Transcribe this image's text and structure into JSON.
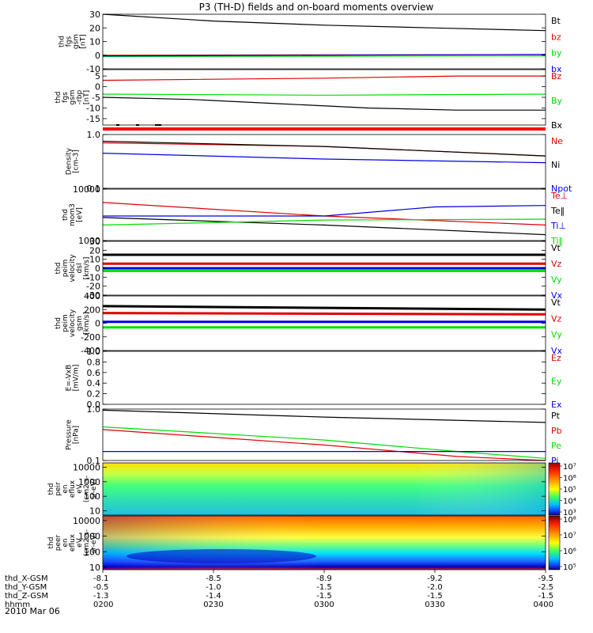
{
  "title": "P3 (TH-D) fields and on-board moments overview",
  "date_label": "2010 Mar 06",
  "colors": {
    "black": "#000000",
    "red": "#e00000",
    "green": "#00dd00",
    "blue": "#0000e0",
    "flag": "#ff0000"
  },
  "chart_data": [
    {
      "type": "line",
      "panel": "fgs-gsm",
      "ylabel": [
        "thd",
        "fgs",
        "gsm",
        "[nT]"
      ],
      "ylim": [
        -10,
        30
      ],
      "yscale": "linear",
      "ticks": [
        "30",
        "20",
        "10",
        "0",
        "-10"
      ],
      "ticks_values": [
        30,
        20,
        10,
        0,
        -10
      ],
      "series": [
        {
          "name": "Bt",
          "color": "black",
          "x": [
            0,
            0.25,
            0.5,
            0.75,
            1
          ],
          "values": [
            30,
            25,
            22,
            20,
            18
          ]
        },
        {
          "name": "bz",
          "color": "red",
          "x": [
            0,
            1
          ],
          "values": [
            0,
            0.5
          ]
        },
        {
          "name": "by",
          "color": "green",
          "x": [
            0,
            1
          ],
          "values": [
            -1,
            -0.5
          ]
        },
        {
          "name": "bx",
          "color": "blue",
          "x": [
            0,
            1
          ],
          "values": [
            -0.5,
            0.5
          ]
        }
      ]
    },
    {
      "type": "line",
      "panel": "fgs-gsm-rbp",
      "ylabel": [
        "thd",
        "fgs",
        "gsm",
        "-rbp",
        "[nT]"
      ],
      "ylim": [
        -18,
        8
      ],
      "yscale": "linear",
      "ticks": [
        "5",
        "0",
        "-5",
        "-10",
        "-15"
      ],
      "ticks_values": [
        5,
        0,
        -5,
        -10,
        -15
      ],
      "series": [
        {
          "name": "Bz",
          "color": "red",
          "x": [
            0,
            0.5,
            0.8,
            1
          ],
          "values": [
            3,
            4,
            5,
            5
          ]
        },
        {
          "name": "By",
          "color": "green",
          "x": [
            0,
            0.5,
            1
          ],
          "values": [
            -3.5,
            -4,
            -3.5
          ]
        },
        {
          "name": "Bx",
          "color": "black",
          "x": [
            0,
            0.2,
            0.4,
            0.6,
            0.8,
            1
          ],
          "values": [
            -5,
            -6,
            -8,
            -10,
            -11,
            -11
          ]
        }
      ]
    },
    {
      "type": "line",
      "panel": "density",
      "ylabel": [
        "Density",
        "[cm-3]"
      ],
      "ylim": [
        0.1,
        1.0
      ],
      "yscale": "log",
      "ticks": [
        "1.0",
        "0.1"
      ],
      "ticks_values": [
        1.0,
        0.1
      ],
      "series": [
        {
          "name": "Ne",
          "color": "red",
          "x": [
            0,
            0.5,
            1
          ],
          "values": [
            0.7,
            0.6,
            0.4
          ]
        },
        {
          "name": "Ni",
          "color": "black",
          "x": [
            0,
            0.5,
            1
          ],
          "values": [
            0.75,
            0.6,
            0.4
          ]
        },
        {
          "name": "Npot",
          "color": "blue",
          "x": [
            0,
            0.5,
            1
          ],
          "values": [
            0.45,
            0.35,
            0.3
          ]
        }
      ]
    },
    {
      "type": "line",
      "panel": "temperature",
      "ylabel": [
        "thd",
        "mom3",
        "[eV]"
      ],
      "ylim": [
        1000,
        10000
      ],
      "yscale": "log",
      "ticks": [
        "10000",
        "1000"
      ],
      "ticks_values": [
        10000,
        1000
      ],
      "series": [
        {
          "name": "Te⊥",
          "color": "red",
          "x": [
            0,
            0.5,
            1
          ],
          "values": [
            5500,
            3000,
            2000
          ]
        },
        {
          "name": "Te‖",
          "color": "black",
          "x": [
            0,
            0.5,
            1
          ],
          "values": [
            2800,
            2000,
            1300
          ]
        },
        {
          "name": "Ti⊥",
          "color": "blue",
          "x": [
            0,
            0.5,
            0.75,
            1
          ],
          "values": [
            3000,
            3000,
            4500,
            4800
          ]
        },
        {
          "name": "Ti‖",
          "color": "green",
          "x": [
            0,
            0.5,
            1
          ],
          "values": [
            2000,
            2500,
            2600
          ]
        }
      ]
    },
    {
      "type": "line",
      "panel": "peim-velocity-dsl",
      "ylabel": [
        "thd",
        "peim",
        "velocity",
        "dsl",
        "[km/s]"
      ],
      "ylim": [
        -30,
        30
      ],
      "yscale": "linear",
      "ticks": [
        "30",
        "20",
        "10",
        "0",
        "-10",
        "-20",
        "-30"
      ],
      "ticks_values": [
        30,
        20,
        10,
        0,
        -10,
        -20,
        -30
      ],
      "series": [
        {
          "name": "Vt",
          "color": "black",
          "x": [
            0,
            1
          ],
          "values": [
            15,
            15
          ]
        },
        {
          "name": "Vz",
          "color": "red",
          "x": [
            0,
            1
          ],
          "values": [
            5,
            5
          ]
        },
        {
          "name": "Vy",
          "color": "green",
          "x": [
            0,
            1
          ],
          "values": [
            -3,
            -3
          ]
        },
        {
          "name": "Vx",
          "color": "blue",
          "x": [
            0,
            1
          ],
          "values": [
            0,
            0
          ]
        }
      ]
    },
    {
      "type": "line",
      "panel": "peim-velocity-gsm",
      "ylabel": [
        "thd",
        "peim",
        "velocity",
        "gsm",
        "[km/s]"
      ],
      "ylim": [
        -400,
        400
      ],
      "yscale": "linear",
      "ticks": [
        "400",
        "200",
        "0",
        "-200",
        "-400"
      ],
      "ticks_values": [
        400,
        200,
        0,
        -200,
        -400
      ],
      "series": [
        {
          "name": "Vt",
          "color": "black",
          "x": [
            0,
            1
          ],
          "values": [
            250,
            200
          ]
        },
        {
          "name": "Vz",
          "color": "red",
          "x": [
            0,
            1
          ],
          "values": [
            150,
            130
          ]
        },
        {
          "name": "Vy",
          "color": "green",
          "x": [
            0,
            1
          ],
          "values": [
            -60,
            -60
          ]
        },
        {
          "name": "Vx",
          "color": "blue",
          "x": [
            0,
            1
          ],
          "values": [
            20,
            20
          ]
        }
      ]
    },
    {
      "type": "line",
      "panel": "e-vxb",
      "ylabel": [
        "E=-VxB",
        "[mV/m]"
      ],
      "ylim": [
        0,
        1
      ],
      "yscale": "linear",
      "ticks": [
        "1.0",
        "0.8",
        "0.6",
        "0.4",
        "0.2",
        "0.0"
      ],
      "ticks_values": [
        1.0,
        0.8,
        0.6,
        0.4,
        0.2,
        0.0
      ],
      "series": [
        {
          "name": "Ez",
          "color": "red",
          "x": [],
          "values": []
        },
        {
          "name": "Ey",
          "color": "green",
          "x": [],
          "values": []
        },
        {
          "name": "Ex",
          "color": "blue",
          "x": [],
          "values": []
        }
      ]
    },
    {
      "type": "line",
      "panel": "pressure",
      "ylabel": [
        "Pressure",
        "[nPa]"
      ],
      "ylim": [
        0.1,
        1.0
      ],
      "yscale": "log",
      "ticks": [
        "1.0",
        "0.1"
      ],
      "ticks_values": [
        1.0,
        0.1
      ],
      "series": [
        {
          "name": "Pt",
          "color": "black",
          "x": [
            0,
            0.5,
            1
          ],
          "values": [
            0.95,
            0.7,
            0.55
          ]
        },
        {
          "name": "Pb",
          "color": "red",
          "x": [
            0,
            0.5,
            0.8,
            1
          ],
          "values": [
            0.4,
            0.2,
            0.12,
            0.1
          ]
        },
        {
          "name": "Pe",
          "color": "green",
          "x": [
            0,
            0.5,
            0.8,
            1
          ],
          "values": [
            0.45,
            0.25,
            0.15,
            0.11
          ]
        },
        {
          "name": "Pi",
          "color": "blue",
          "x": [
            0,
            1
          ],
          "values": [
            0.15,
            0.15
          ]
        }
      ]
    },
    {
      "type": "heatmap",
      "panel": "peir-en-eflux",
      "ylabel": [
        "thd",
        "peir",
        "en",
        "eflux",
        "eV",
        "(cm2-s-",
        "sr-eV)"
      ],
      "ylim": [
        5,
        20000
      ],
      "yscale": "log",
      "ticks": [
        "10000",
        "1000",
        "100",
        "10"
      ],
      "ticks_values": [
        10000,
        1000,
        100,
        10
      ],
      "colorbar": {
        "ticks": [
          "10⁷",
          "10⁶",
          "10⁵",
          "10⁴",
          "10³"
        ],
        "range": [
          1000,
          10000000
        ]
      }
    },
    {
      "type": "heatmap",
      "panel": "peer-en-eflux",
      "ylabel": [
        "thd",
        "peer",
        "en",
        "eflux",
        "eV",
        "(cm2-s-",
        "sr-eV)"
      ],
      "ylim": [
        7,
        20000
      ],
      "yscale": "log",
      "ticks": [
        "10000",
        "1000",
        "100",
        "10"
      ],
      "ticks_values": [
        10000,
        1000,
        100,
        10
      ],
      "colorbar": {
        "ticks": [
          "10⁸",
          "10⁷",
          "10⁶",
          "10⁵"
        ],
        "range": [
          50000,
          300000000
        ]
      }
    }
  ],
  "x_axis": {
    "rows": [
      {
        "label": "thd_X-GSM",
        "ticks": [
          "-8.1",
          "-8.5",
          "-8.9",
          "-9.2",
          "-9.5"
        ]
      },
      {
        "label": "thd_Y-GSM",
        "ticks": [
          "-0.5",
          "-1.0",
          "-1.5",
          "-2.0",
          "-2.5"
        ]
      },
      {
        "label": "thd_Z-GSM",
        "ticks": [
          "-1.3",
          "-1.4",
          "-1.5",
          "-1.5",
          "-1.5"
        ]
      },
      {
        "label": "hhmm",
        "ticks": [
          "0200",
          "0230",
          "0300",
          "0330",
          "0400"
        ]
      }
    ]
  }
}
